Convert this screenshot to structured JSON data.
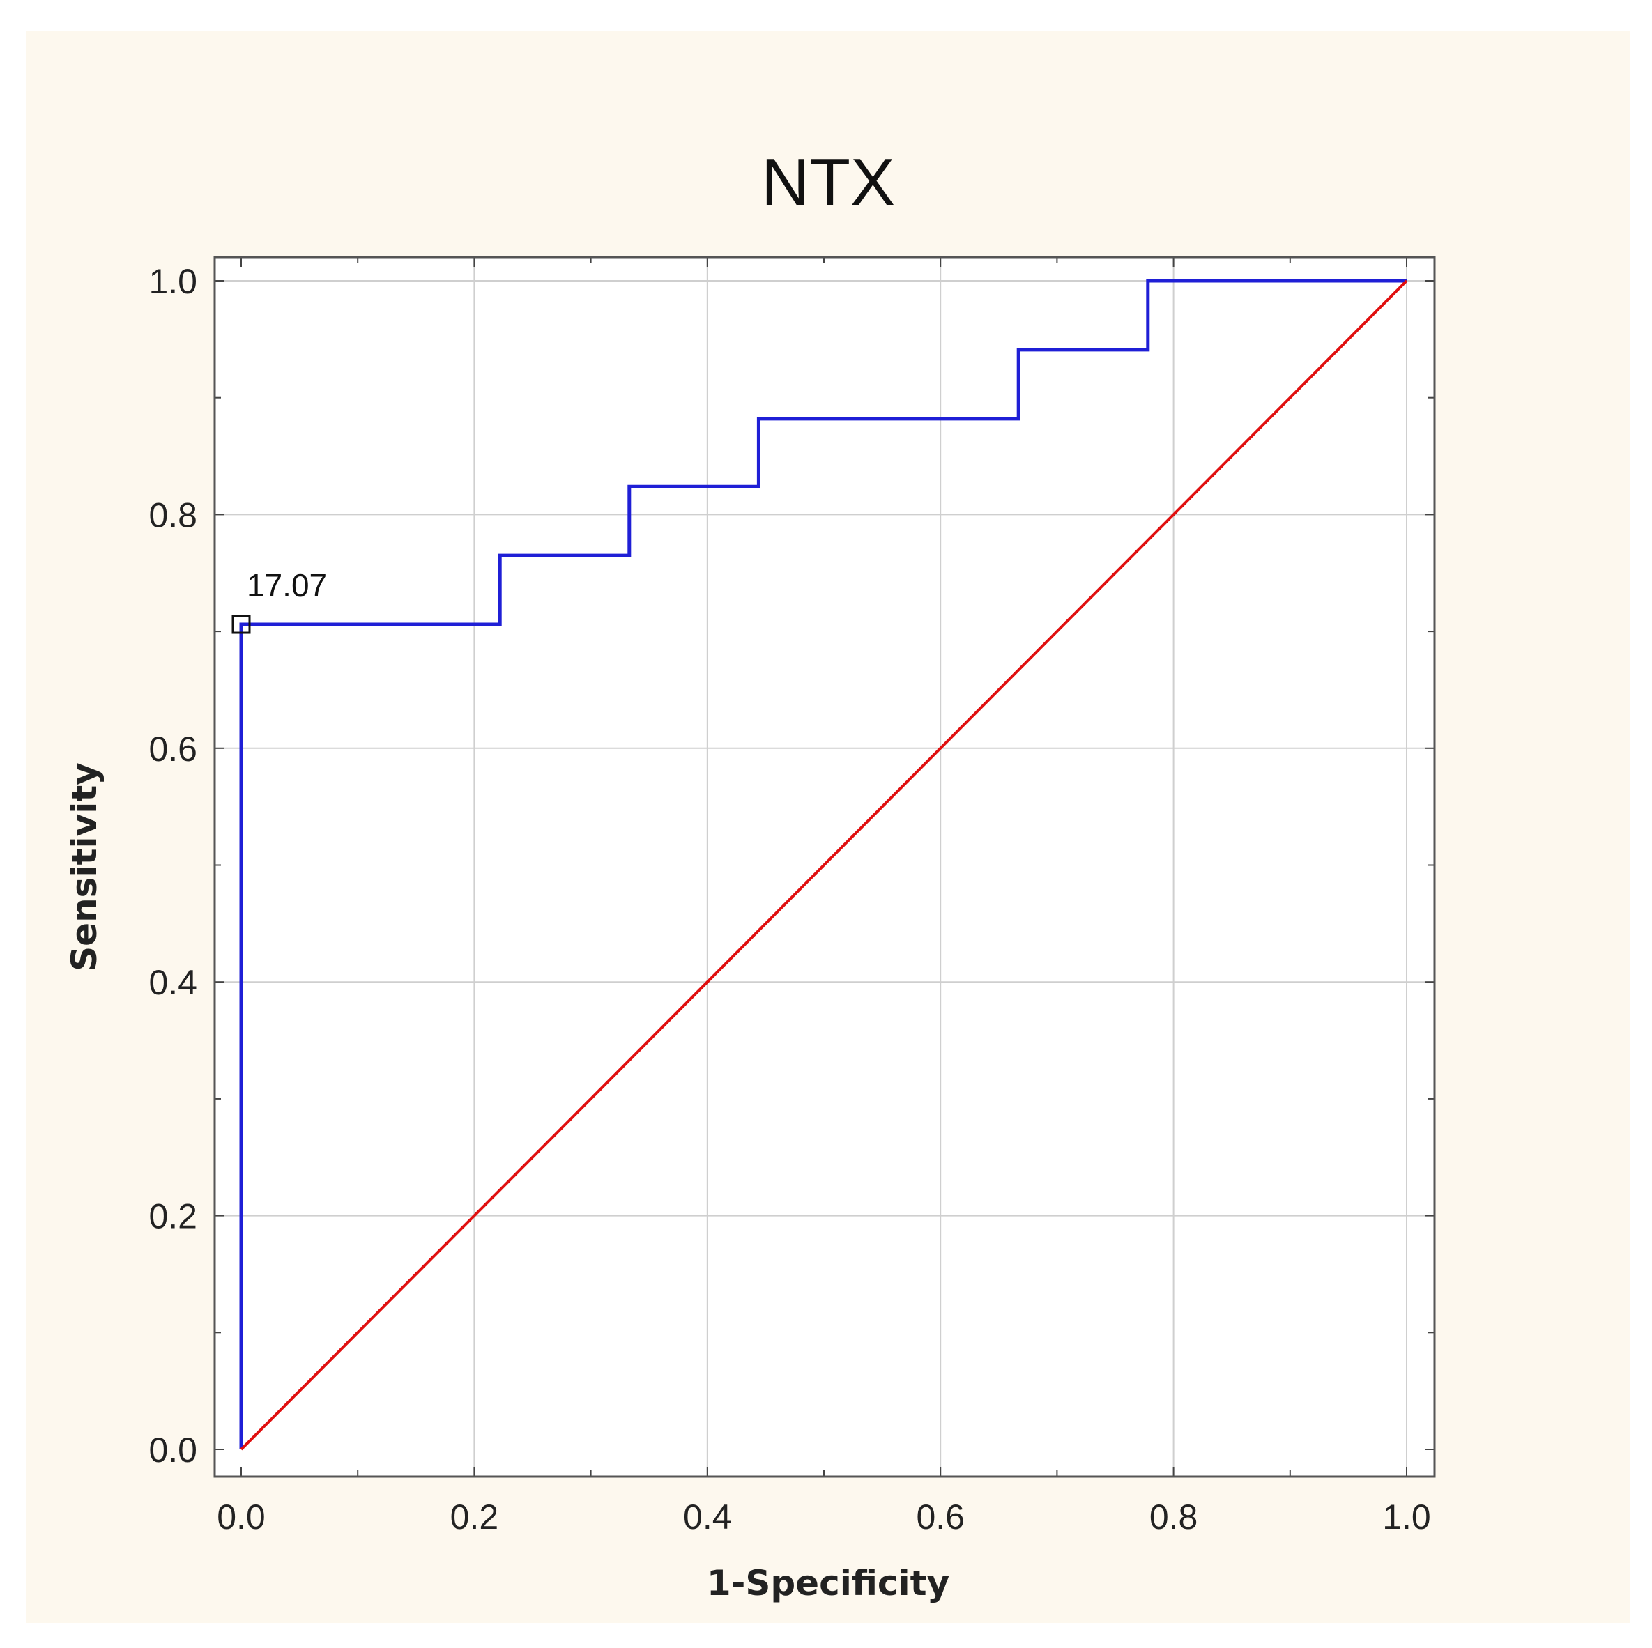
{
  "chart_data": {
    "type": "line",
    "title": "NTX",
    "xlabel": "1-Specificity",
    "ylabel": "Sensitivity",
    "xlim": [
      0.0,
      1.0
    ],
    "ylim": [
      0.0,
      1.0
    ],
    "xticks": [
      "0.0",
      "0.2",
      "0.4",
      "0.6",
      "0.8",
      "1.0"
    ],
    "yticks": [
      "0.0",
      "0.2",
      "0.4",
      "0.6",
      "0.8",
      "1.0"
    ],
    "grid": true,
    "series": [
      {
        "color": "#1f1fd6",
        "step": true,
        "x": [
          0.0,
          0.0,
          0.222,
          0.222,
          0.333,
          0.333,
          0.444,
          0.444,
          0.667,
          0.667,
          0.778,
          0.778,
          1.0
        ],
        "y": [
          0.0,
          0.706,
          0.706,
          0.765,
          0.765,
          0.824,
          0.824,
          0.882,
          0.882,
          0.941,
          0.941,
          1.0,
          1.0
        ]
      },
      {
        "color": "#e01010",
        "x": [
          0.0,
          1.0
        ],
        "y": [
          0.0,
          1.0
        ]
      }
    ],
    "annotations": [
      {
        "text": "17.07",
        "x": 0.0,
        "y": 0.706,
        "marker": "square"
      }
    ]
  }
}
